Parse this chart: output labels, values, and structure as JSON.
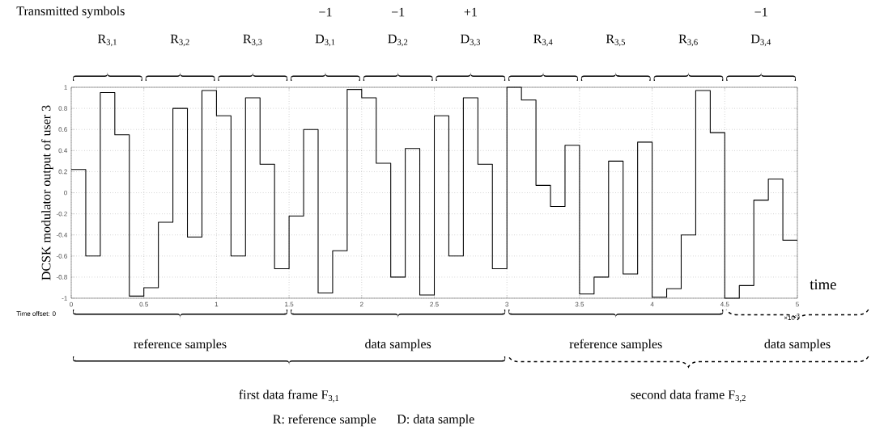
{
  "chart_data": {
    "type": "step",
    "ylabel": "DCSK modulator output of user 3",
    "color": "#000000",
    "x": [
      0,
      0.1,
      0.2,
      0.3,
      0.4,
      0.5,
      0.6,
      0.7,
      0.8,
      0.9,
      1,
      1.1,
      1.2,
      1.3,
      1.4,
      1.5,
      1.6,
      1.7,
      1.8,
      1.9,
      2,
      2.1,
      2.2,
      2.3,
      2.4,
      2.5,
      2.6,
      2.7,
      2.8,
      2.9,
      3,
      3.1,
      3.2,
      3.3,
      3.4,
      3.5,
      3.6,
      3.7,
      3.8,
      3.9,
      4,
      4.1,
      4.2,
      4.3,
      4.4,
      4.5,
      4.6,
      4.7,
      4.8,
      4.9,
      5
    ],
    "values": [
      0.22,
      -0.6,
      0.95,
      0.55,
      -0.98,
      -0.9,
      -0.28,
      0.8,
      -0.42,
      0.97,
      0.73,
      -0.6,
      0.9,
      0.27,
      -0.72,
      -0.22,
      0.6,
      -0.95,
      -0.55,
      0.98,
      0.9,
      0.28,
      -0.8,
      0.42,
      -0.97,
      0.73,
      -0.6,
      0.9,
      0.27,
      -0.72,
      1.0,
      0.88,
      0.07,
      -0.13,
      0.45,
      -0.96,
      -0.8,
      0.3,
      -0.77,
      0.48,
      -0.99,
      -0.91,
      -0.4,
      0.97,
      0.57,
      -1.0,
      -0.88,
      -0.07,
      0.13,
      -0.45,
      -0.45
    ],
    "xlim": [
      0,
      5
    ],
    "ylim": [
      -1,
      1
    ],
    "xticks": [
      0,
      0.5,
      1,
      1.5,
      2,
      2.5,
      3,
      3.5,
      4,
      4.5,
      5
    ],
    "yticks": [
      -1,
      -0.8,
      -0.6,
      -0.4,
      -0.2,
      0,
      0.2,
      0.4,
      0.6,
      0.8,
      1
    ],
    "grid": true,
    "annotations": [
      "R$_{3,1}$",
      "R$_{3,2}$",
      "R$_{3,3}$",
      "D$_{3,1}$",
      "D$_{3,2}$",
      "D$_{3,3}$",
      "R$_{3,4}$",
      "R$_{3,5}$",
      "R$_{3,6}$",
      "D$_{3,4}$",
      "−1",
      "−1",
      "+1",
      "−1",
      "reference samples",
      "data samples",
      "reference samples",
      "data samples",
      "first data frame F$_{3,1}$",
      "second data frame F$_{3,2}$",
      "Transmitted symbols",
      "time",
      "Time offset: 0",
      "×10$^{-3}$",
      "R: reference sample",
      "D: data sample"
    ]
  }
}
